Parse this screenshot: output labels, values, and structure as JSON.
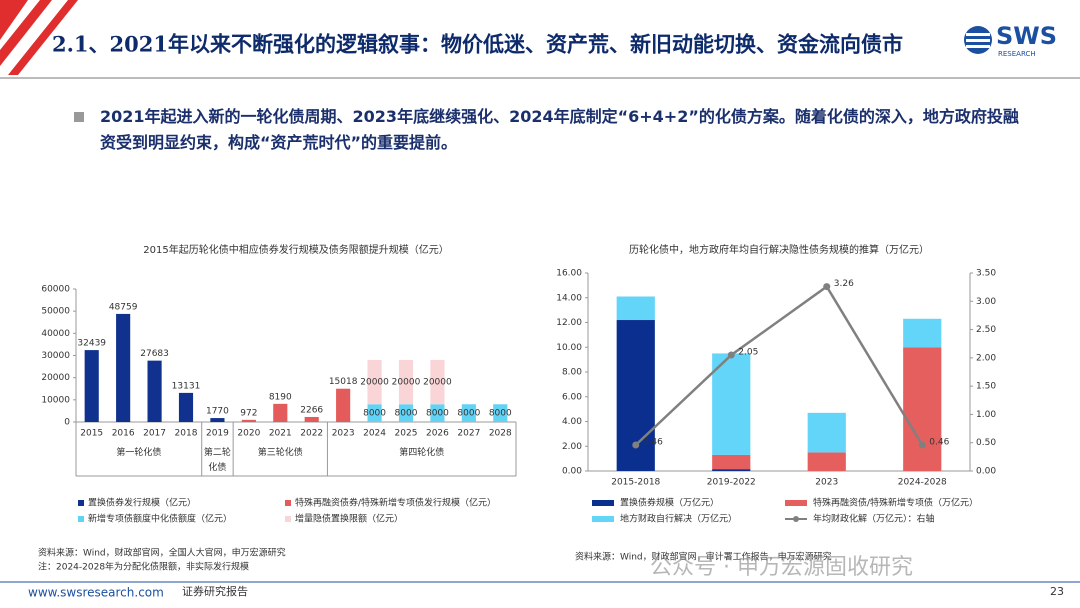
{
  "header": {
    "title": "2.1、2021年以来不断强化的逻辑叙事：物价低迷、资产荒、新旧动能切换、资金流向债市",
    "logo": "SWS",
    "logo_sub": "RESEARCH"
  },
  "bullet": "2021年起进入新的一轮化债周期、2023年底继续强化、2024年底制定“6+4+2”的化债方案。随着化债的深入，地方政府投融资受到明显约束，构成“资产荒时代”的重要提前。",
  "chart_data": [
    {
      "type": "bar",
      "stacked": true,
      "title": "2015年起历轮化债中相应债券发行规模及债务限额提升规模（亿元）",
      "categories": [
        "2015",
        "2016",
        "2017",
        "2018",
        "2019",
        "2020",
        "2021",
        "2022",
        "2023",
        "2024",
        "2025",
        "2026",
        "2027",
        "2028"
      ],
      "groups": [
        "第一轮化债",
        "第二轮化债",
        "第三轮化债",
        "第四轮化债"
      ],
      "series": [
        {
          "name": "置换债券发行规模（亿元）",
          "color": "#11318f",
          "values": [
            32439,
            48759,
            27683,
            13131,
            1770,
            null,
            null,
            null,
            null,
            null,
            null,
            null,
            null,
            null
          ]
        },
        {
          "name": "特殊再融资债券/特殊新增专项债发行规模（亿元）",
          "color": "#e45b5b",
          "values": [
            null,
            null,
            null,
            null,
            null,
            972,
            8190,
            2266,
            15018,
            null,
            null,
            null,
            null,
            null
          ]
        },
        {
          "name": "新增专项债额度中化债额度（亿元）",
          "color": "#62d3f5",
          "values": [
            null,
            null,
            null,
            null,
            null,
            null,
            null,
            null,
            null,
            8000,
            8000,
            8000,
            8000,
            8000
          ]
        },
        {
          "name": "增量隐债置换限额（亿元）",
          "color": "#fad5d7",
          "values": [
            null,
            null,
            null,
            null,
            null,
            null,
            null,
            null,
            null,
            20000,
            20000,
            20000,
            null,
            null
          ]
        }
      ],
      "ylim": [
        0,
        60000
      ],
      "yticks": [
        0,
        10000,
        20000,
        30000,
        40000,
        50000,
        60000
      ]
    },
    {
      "type": "bar",
      "stacked": true,
      "title": "历轮化债中，地方政府年均自行解决隐性债务规模的推算（万亿元）",
      "categories": [
        "2015-2018",
        "2019-2022",
        "2023",
        "2024-2028"
      ],
      "series": [
        {
          "name": "置换债券规模（万亿元）",
          "color": "#0b2f8f",
          "values": [
            12.2,
            0.15,
            null,
            null
          ]
        },
        {
          "name": "特殊再融资债/特殊新增专项债（万亿元）",
          "color": "#e65f5f",
          "values": [
            null,
            1.15,
            1.5,
            10.0
          ]
        },
        {
          "name": "地方财政自行解决（万亿元）",
          "color": "#62d5f8",
          "values": [
            1.9,
            8.2,
            3.2,
            2.3
          ]
        },
        {
          "name": "年均财政化解（万亿元）：右轴",
          "color": "#808080",
          "type": "line",
          "axis": "y2",
          "values": [
            0.46,
            2.05,
            3.26,
            0.46
          ]
        }
      ],
      "ylim": [
        0,
        16
      ],
      "yticks": [
        {
          "value": 0,
          "label": "0.00"
        },
        {
          "value": 2,
          "label": "2.00"
        },
        {
          "value": 4,
          "label": "4.00"
        },
        {
          "value": 6,
          "label": "6.00"
        },
        {
          "value": 8,
          "label": "8.00"
        },
        {
          "value": 10,
          "label": "10.00"
        },
        {
          "value": 12,
          "label": "12.00"
        },
        {
          "value": 14,
          "label": "14.00"
        },
        {
          "value": 16,
          "label": "16.00"
        }
      ],
      "y2lim": [
        0,
        3.5
      ],
      "y2ticks": [
        {
          "value": 0,
          "label": "0.00"
        },
        {
          "value": 0.5,
          "label": "0.50"
        },
        {
          "value": 1,
          "label": "1.00"
        },
        {
          "value": 1.5,
          "label": "1.50"
        },
        {
          "value": 2,
          "label": "2.00"
        },
        {
          "value": 2.5,
          "label": "2.50"
        },
        {
          "value": 3,
          "label": "3.00"
        },
        {
          "value": 3.5,
          "label": "3.50"
        }
      ]
    }
  ],
  "sources": {
    "left": "资料来源：Wind，财政部官网，全国人大官网，申万宏源研究",
    "note": "注：2024-2028年为分配化债限额，非实际发行规模",
    "right": "资料来源：Wind，财政部官网，审计署工作报告，申万宏源研究"
  },
  "watermark": "公众号 · 申万宏源固收研究",
  "footer": {
    "url": "www.swsresearch.com",
    "label": "证券研究报告",
    "page": "23"
  }
}
